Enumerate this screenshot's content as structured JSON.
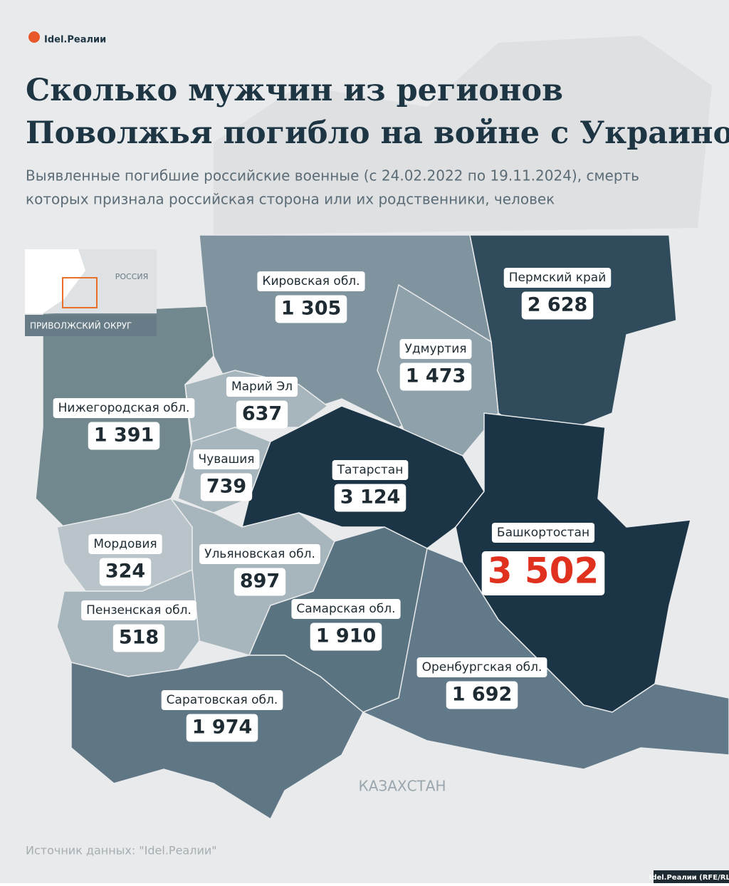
{
  "header": {
    "logo": "Idel.Реалии",
    "title_line1": "Сколько мужчин из регионов",
    "title_line2": "Поволжья погибло на войне с Украиной",
    "subtitle_line1": "Выявленные погибшие российские военные (с 24.02.2022 по 19.11.2024), смерть",
    "subtitle_line2": "которых признала российская сторона или их родственники, человек"
  },
  "inset": {
    "country": "РОССИЯ",
    "district": "ПРИВОЛЖСКИЙ ОКРУГ"
  },
  "regions": [
    {
      "name": "Кировская обл.",
      "value": "1 305",
      "color": "#7f949e"
    },
    {
      "name": "Пермский край",
      "value": "2 628",
      "color": "#2f4b5c"
    },
    {
      "name": "Удмуртия",
      "value": "1 473",
      "color": "#8fa2ab"
    },
    {
      "name": "Нижегородская обл.",
      "value": "1 391",
      "color": "#71888f"
    },
    {
      "name": "Марий Эл",
      "value": "637",
      "color": "#a7b6bc"
    },
    {
      "name": "Чувашия",
      "value": "739",
      "color": "#a7b6bc"
    },
    {
      "name": "Татарстан",
      "value": "3 124",
      "color": "#1b3547"
    },
    {
      "name": "Башкортостан",
      "value": "3 502",
      "color": "#1b3547"
    },
    {
      "name": "Мордовия",
      "value": "324",
      "color": "#b8c4c9"
    },
    {
      "name": "Ульяновская обл.",
      "value": "897",
      "color": "#a7b6bc"
    },
    {
      "name": "Пензенская обл.",
      "value": "518",
      "color": "#a7b6bc"
    },
    {
      "name": "Самарская обл.",
      "value": "1 910",
      "color": "#5a7381"
    },
    {
      "name": "Саратовская обл.",
      "value": "1 974",
      "color": "#5f7785"
    },
    {
      "name": "Оренбургская обл.",
      "value": "1 692",
      "color": "#62798a"
    }
  ],
  "neighbor": "КАЗАХСТАН",
  "footer": {
    "source": "Источник данных: \"Idel.Реалии\"",
    "credit": "Idel.Реалии (RFE/RL)"
  }
}
